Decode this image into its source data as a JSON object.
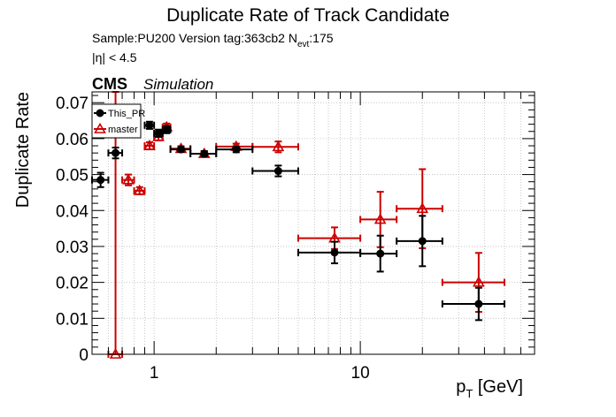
{
  "chart_data": {
    "type": "scatter",
    "title": "Duplicate Rate of Track Candidate",
    "info_line": "Sample:PU200   Version tag:363cb2  N",
    "info_sub": "evt",
    "info_tail": ":175",
    "eta_cut": "|η| < 4.5",
    "cms_label": "CMS",
    "sim_label": "Simulation",
    "ylabel": "Duplicate Rate",
    "xlabel_main": "p",
    "xlabel_sub": "T",
    "xlabel_unit": " [GeV]",
    "xscale": "log",
    "xlim": [
      0.5,
      70
    ],
    "ylim": [
      0,
      0.073
    ],
    "grid": true,
    "legend_position": "top-left",
    "x_tick_labels": [
      {
        "v": 1,
        "t": "1"
      },
      {
        "v": 10,
        "t": "10"
      }
    ],
    "y_tick_labels": [
      {
        "v": 0,
        "t": "0"
      },
      {
        "v": 0.01,
        "t": "0.01"
      },
      {
        "v": 0.02,
        "t": "0.02"
      },
      {
        "v": 0.03,
        "t": "0.03"
      },
      {
        "v": 0.04,
        "t": "0.04"
      },
      {
        "v": 0.05,
        "t": "0.05"
      },
      {
        "v": 0.06,
        "t": "0.06"
      },
      {
        "v": 0.07,
        "t": "0.07"
      }
    ],
    "series": [
      {
        "name": "This_PR",
        "color": "#000000",
        "marker": "circle",
        "points": [
          {
            "x": 0.55,
            "xlo": 0.5,
            "xhi": 0.6,
            "y": 0.0485,
            "ylo": 0.0465,
            "yhi": 0.0505
          },
          {
            "x": 0.65,
            "xlo": 0.6,
            "xhi": 0.7,
            "y": 0.056,
            "ylo": 0.0545,
            "yhi": 0.0575
          },
          {
            "x": 0.95,
            "xlo": 0.9,
            "xhi": 1.0,
            "y": 0.0637,
            "ylo": 0.0627,
            "yhi": 0.0647
          },
          {
            "x": 1.05,
            "xlo": 1.0,
            "xhi": 1.1,
            "y": 0.0615,
            "ylo": 0.0605,
            "yhi": 0.0625
          },
          {
            "x": 1.15,
            "xlo": 1.1,
            "xhi": 1.2,
            "y": 0.0625,
            "ylo": 0.0615,
            "yhi": 0.0635
          },
          {
            "x": 1.35,
            "xlo": 1.2,
            "xhi": 1.5,
            "y": 0.057,
            "ylo": 0.0563,
            "yhi": 0.0577
          },
          {
            "x": 1.75,
            "xlo": 1.5,
            "xhi": 2.0,
            "y": 0.0558,
            "ylo": 0.0551,
            "yhi": 0.0565
          },
          {
            "x": 2.5,
            "xlo": 2.0,
            "xhi": 3.0,
            "y": 0.057,
            "ylo": 0.0562,
            "yhi": 0.0578
          },
          {
            "x": 4.0,
            "xlo": 3.0,
            "xhi": 5.0,
            "y": 0.051,
            "ylo": 0.0495,
            "yhi": 0.0525
          },
          {
            "x": 7.5,
            "xlo": 5.0,
            "xhi": 10.0,
            "y": 0.0283,
            "ylo": 0.0253,
            "yhi": 0.0313
          },
          {
            "x": 12.5,
            "xlo": 10.0,
            "xhi": 15.0,
            "y": 0.028,
            "ylo": 0.023,
            "yhi": 0.033
          },
          {
            "x": 20.0,
            "xlo": 15.0,
            "xhi": 25.0,
            "y": 0.0315,
            "ylo": 0.0245,
            "yhi": 0.0385
          },
          {
            "x": 37.5,
            "xlo": 25.0,
            "xhi": 50.0,
            "y": 0.014,
            "ylo": 0.0095,
            "yhi": 0.0185
          }
        ]
      },
      {
        "name": "master",
        "color": "#cc0000",
        "marker": "open-triangle",
        "points": [
          {
            "x": 0.65,
            "xlo": 0.6,
            "xhi": 0.7,
            "y": 0.0,
            "ylo": 0.0,
            "yhi": 0.073
          },
          {
            "x": 0.75,
            "xlo": 0.7,
            "xhi": 0.8,
            "y": 0.0485,
            "ylo": 0.047,
            "yhi": 0.05
          },
          {
            "x": 0.85,
            "xlo": 0.8,
            "xhi": 0.9,
            "y": 0.0455,
            "ylo": 0.0445,
            "yhi": 0.0465
          },
          {
            "x": 0.95,
            "xlo": 0.9,
            "xhi": 1.0,
            "y": 0.058,
            "ylo": 0.057,
            "yhi": 0.059
          },
          {
            "x": 1.05,
            "xlo": 1.0,
            "xhi": 1.1,
            "y": 0.0605,
            "ylo": 0.0595,
            "yhi": 0.0615
          },
          {
            "x": 1.15,
            "xlo": 1.1,
            "xhi": 1.2,
            "y": 0.0632,
            "ylo": 0.0622,
            "yhi": 0.0642
          },
          {
            "x": 1.35,
            "xlo": 1.2,
            "xhi": 1.5,
            "y": 0.0572,
            "ylo": 0.0565,
            "yhi": 0.0579
          },
          {
            "x": 1.75,
            "xlo": 1.5,
            "xhi": 2.0,
            "y": 0.0558,
            "ylo": 0.0551,
            "yhi": 0.0565
          },
          {
            "x": 2.5,
            "xlo": 2.0,
            "xhi": 3.0,
            "y": 0.0578,
            "ylo": 0.057,
            "yhi": 0.0586
          },
          {
            "x": 4.0,
            "xlo": 3.0,
            "xhi": 5.0,
            "y": 0.0577,
            "ylo": 0.0562,
            "yhi": 0.0592
          },
          {
            "x": 7.5,
            "xlo": 5.0,
            "xhi": 10.0,
            "y": 0.0323,
            "ylo": 0.0293,
            "yhi": 0.0353
          },
          {
            "x": 12.5,
            "xlo": 10.0,
            "xhi": 15.0,
            "y": 0.0375,
            "ylo": 0.0298,
            "yhi": 0.0452
          },
          {
            "x": 20.0,
            "xlo": 15.0,
            "xhi": 25.0,
            "y": 0.0405,
            "ylo": 0.0295,
            "yhi": 0.0515
          },
          {
            "x": 37.5,
            "xlo": 25.0,
            "xhi": 50.0,
            "y": 0.02,
            "ylo": 0.0118,
            "yhi": 0.0282
          }
        ]
      }
    ]
  }
}
